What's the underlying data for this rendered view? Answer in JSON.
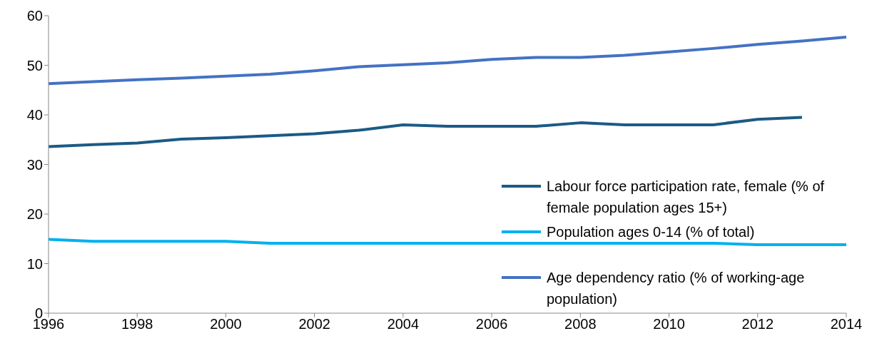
{
  "chart_data": {
    "type": "line",
    "x": [
      1996,
      1997,
      1998,
      1999,
      2000,
      2001,
      2002,
      2003,
      2004,
      2005,
      2006,
      2007,
      2008,
      2009,
      2010,
      2011,
      2012,
      2013,
      2014
    ],
    "xlim": [
      1996,
      2014
    ],
    "xticks": [
      1996,
      1998,
      2000,
      2002,
      2004,
      2006,
      2008,
      2010,
      2012,
      2014
    ],
    "ylim": [
      0,
      60
    ],
    "yticks": [
      0,
      10,
      20,
      30,
      40,
      50,
      60
    ],
    "grid": false,
    "legend": "right",
    "marker": "none",
    "line_style": "solid",
    "series": [
      {
        "name": "Labour force participation rate, female (% of female population ages 15+)",
        "color": "#1b5a86",
        "values": [
          33.6,
          34.0,
          34.3,
          35.1,
          35.4,
          35.8,
          36.2,
          36.9,
          38.0,
          37.7,
          37.7,
          37.7,
          38.4,
          38.0,
          38.0,
          38.0,
          39.1,
          39.5,
          null
        ]
      },
      {
        "name": "Population ages 0-14 (% of total)",
        "color": "#00b0f0",
        "values": [
          14.9,
          14.5,
          14.5,
          14.5,
          14.5,
          14.1,
          14.1,
          14.1,
          14.1,
          14.1,
          14.1,
          14.1,
          14.1,
          14.1,
          14.1,
          14.1,
          13.8,
          13.8,
          13.8
        ]
      },
      {
        "name": "Age dependency ratio (% of working-age population)",
        "color": "#4472c4",
        "values": [
          46.3,
          46.7,
          47.1,
          47.4,
          47.8,
          48.2,
          48.9,
          49.7,
          50.1,
          50.5,
          51.2,
          51.6,
          51.6,
          52.0,
          52.7,
          53.4,
          54.2,
          54.9,
          55.7
        ]
      }
    ]
  }
}
